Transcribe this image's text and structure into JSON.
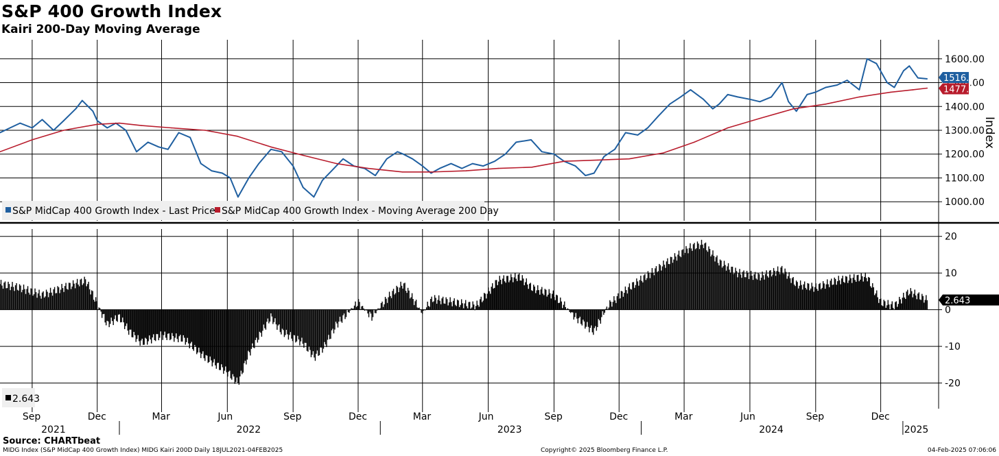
{
  "title": "S&P 400 Growth Index",
  "subtitle": "Kairi 200-Day Moving Average",
  "source": "Source: CHARTbeat",
  "footer": {
    "left": "MIDG Index (S&P MidCap 400 Growth Index) MIDG Kairi 200D  Daily 18JUL2021-04FEB2025",
    "center": "Copyright© 2025 Bloomberg Finance L.P.",
    "right": "04-Feb-2025 07:06:06"
  },
  "colors": {
    "price": "#1f5fa0",
    "ma": "#b81c2c",
    "kairi": "#000000",
    "grid": "#000000"
  },
  "chart_data": [
    {
      "type": "line",
      "ylabel": "Index",
      "ylim": [
        920,
        1680
      ],
      "yticks": [
        "1600.00",
        "1500.00",
        "1400.00",
        "1300.00",
        "1200.00",
        "1100.00",
        "1000.00"
      ],
      "grid": true,
      "legend_position": "bottom-left",
      "last_values": {
        "price": "1516.05",
        "ma": "1477.01"
      },
      "series": [
        {
          "name": "S&P MidCap 400 Growth Index - Last Price",
          "x": [
            "2021-07-18",
            "2021-08-01",
            "2021-08-15",
            "2021-09-01",
            "2021-09-15",
            "2021-10-01",
            "2021-10-15",
            "2021-11-01",
            "2021-11-10",
            "2021-11-25",
            "2021-12-01",
            "2021-12-15",
            "2021-12-27",
            "2022-01-10",
            "2022-01-25",
            "2022-02-10",
            "2022-02-25",
            "2022-03-10",
            "2022-03-25",
            "2022-04-10",
            "2022-04-25",
            "2022-05-10",
            "2022-05-25",
            "2022-06-05",
            "2022-06-16",
            "2022-07-01",
            "2022-07-15",
            "2022-08-01",
            "2022-08-16",
            "2022-09-01",
            "2022-09-15",
            "2022-09-30",
            "2022-10-12",
            "2022-10-25",
            "2022-11-10",
            "2022-11-25",
            "2022-12-10",
            "2022-12-25",
            "2023-01-10",
            "2023-01-25",
            "2023-02-02",
            "2023-02-15",
            "2023-03-01",
            "2023-03-13",
            "2023-03-25",
            "2023-04-10",
            "2023-04-25",
            "2023-05-10",
            "2023-05-25",
            "2023-06-10",
            "2023-06-25",
            "2023-07-10",
            "2023-07-31",
            "2023-08-15",
            "2023-09-01",
            "2023-09-15",
            "2023-10-01",
            "2023-10-15",
            "2023-10-27",
            "2023-11-10",
            "2023-11-25",
            "2023-12-10",
            "2023-12-27",
            "2024-01-10",
            "2024-01-25",
            "2024-02-10",
            "2024-02-25",
            "2024-03-10",
            "2024-03-28",
            "2024-04-10",
            "2024-04-19",
            "2024-05-01",
            "2024-05-15",
            "2024-06-01",
            "2024-06-15",
            "2024-07-01",
            "2024-07-16",
            "2024-07-25",
            "2024-08-05",
            "2024-08-20",
            "2024-09-01",
            "2024-09-15",
            "2024-10-01",
            "2024-10-15",
            "2024-11-01",
            "2024-11-12",
            "2024-11-25",
            "2024-12-10",
            "2024-12-20",
            "2025-01-02",
            "2025-01-10",
            "2025-01-22",
            "2025-02-04"
          ],
          "values": [
            1290,
            1310,
            1330,
            1310,
            1345,
            1300,
            1340,
            1390,
            1425,
            1380,
            1340,
            1310,
            1330,
            1300,
            1210,
            1250,
            1230,
            1220,
            1290,
            1270,
            1160,
            1130,
            1120,
            1100,
            1020,
            1100,
            1160,
            1220,
            1210,
            1150,
            1060,
            1020,
            1090,
            1130,
            1180,
            1150,
            1140,
            1110,
            1180,
            1210,
            1200,
            1180,
            1150,
            1120,
            1140,
            1160,
            1140,
            1160,
            1150,
            1170,
            1200,
            1250,
            1260,
            1210,
            1200,
            1170,
            1150,
            1110,
            1120,
            1190,
            1220,
            1290,
            1280,
            1310,
            1360,
            1410,
            1440,
            1470,
            1430,
            1390,
            1410,
            1450,
            1440,
            1430,
            1420,
            1440,
            1500,
            1420,
            1380,
            1450,
            1460,
            1480,
            1490,
            1510,
            1470,
            1600,
            1580,
            1500,
            1480,
            1550,
            1570,
            1520,
            1516.05
          ]
        },
        {
          "name": "S&P MidCap 400 Growth Index - Moving Average 200 Day",
          "x": [
            "2021-07-18",
            "2021-09-01",
            "2021-10-15",
            "2021-12-01",
            "2022-01-01",
            "2022-02-01",
            "2022-03-15",
            "2022-05-01",
            "2022-06-15",
            "2022-08-01",
            "2022-09-15",
            "2022-11-01",
            "2022-12-15",
            "2023-02-01",
            "2023-03-15",
            "2023-05-01",
            "2023-06-15",
            "2023-08-01",
            "2023-09-15",
            "2023-11-01",
            "2023-12-15",
            "2024-02-01",
            "2024-03-15",
            "2024-05-01",
            "2024-06-15",
            "2024-08-01",
            "2024-09-15",
            "2024-11-01",
            "2024-12-15",
            "2025-01-15",
            "2025-02-04"
          ],
          "values": [
            1210,
            1260,
            1300,
            1325,
            1330,
            1320,
            1310,
            1300,
            1275,
            1230,
            1195,
            1160,
            1140,
            1125,
            1125,
            1130,
            1140,
            1145,
            1170,
            1175,
            1180,
            1205,
            1250,
            1310,
            1350,
            1390,
            1410,
            1440,
            1460,
            1470,
            1477.01
          ]
        }
      ]
    },
    {
      "type": "bar",
      "ylim": [
        -27,
        22
      ],
      "yticks": [
        "20",
        "10",
        "0",
        "-10",
        "-20"
      ],
      "grid": true,
      "legend_position": "bottom-left",
      "last_value_label": "2.643",
      "series": [
        {
          "name": "2.643",
          "x": [
            "2021-07-18",
            "2021-08-15",
            "2021-09-15",
            "2021-10-15",
            "2021-11-15",
            "2021-12-15",
            "2022-01-01",
            "2022-01-15",
            "2022-02-01",
            "2022-03-01",
            "2022-04-01",
            "2022-05-01",
            "2022-06-01",
            "2022-06-16",
            "2022-07-01",
            "2022-08-01",
            "2022-08-16",
            "2022-09-15",
            "2022-10-01",
            "2022-10-15",
            "2022-11-01",
            "2022-12-01",
            "2022-12-20",
            "2023-01-15",
            "2023-02-02",
            "2023-03-01",
            "2023-03-15",
            "2023-04-15",
            "2023-05-15",
            "2023-06-15",
            "2023-07-15",
            "2023-08-01",
            "2023-09-01",
            "2023-10-01",
            "2023-10-27",
            "2023-11-15",
            "2023-12-15",
            "2024-01-15",
            "2024-02-15",
            "2024-03-10",
            "2024-03-28",
            "2024-04-19",
            "2024-05-15",
            "2024-06-15",
            "2024-07-16",
            "2024-08-05",
            "2024-09-01",
            "2024-10-01",
            "2024-11-12",
            "2024-12-01",
            "2024-12-20",
            "2025-01-10",
            "2025-02-04"
          ],
          "values": [
            7,
            6,
            4,
            6,
            8,
            -4,
            -2,
            -6,
            -9,
            -7,
            -8,
            -13,
            -17,
            -20,
            -12,
            -2,
            -6,
            -9,
            -13,
            -10,
            -4,
            2,
            -2,
            4,
            7,
            -1,
            3,
            2,
            1,
            8,
            9,
            6,
            4,
            -2,
            -6,
            1,
            6,
            10,
            14,
            17,
            18,
            13,
            10,
            9,
            11,
            7,
            6,
            8,
            9,
            2,
            1,
            5,
            2.643
          ]
        }
      ]
    }
  ],
  "x_axis": {
    "month_labels": [
      {
        "label": "Sep",
        "date": "2021-09-01"
      },
      {
        "label": "Dec",
        "date": "2021-12-01"
      },
      {
        "label": "Mar",
        "date": "2022-03-01"
      },
      {
        "label": "Jun",
        "date": "2022-06-01"
      },
      {
        "label": "Sep",
        "date": "2022-09-01"
      },
      {
        "label": "Dec",
        "date": "2022-12-01"
      },
      {
        "label": "Mar",
        "date": "2023-03-01"
      },
      {
        "label": "Jun",
        "date": "2023-06-01"
      },
      {
        "label": "Sep",
        "date": "2023-09-01"
      },
      {
        "label": "Dec",
        "date": "2023-12-01"
      },
      {
        "label": "Mar",
        "date": "2024-03-01"
      },
      {
        "label": "Jun",
        "date": "2024-06-01"
      },
      {
        "label": "Sep",
        "date": "2024-09-01"
      },
      {
        "label": "Dec",
        "date": "2024-12-01"
      }
    ],
    "year_labels": [
      {
        "label": "2021",
        "date": "2021-10-01"
      },
      {
        "label": "2022",
        "date": "2022-07-01"
      },
      {
        "label": "2023",
        "date": "2023-07-01"
      },
      {
        "label": "2024",
        "date": "2024-07-01"
      },
      {
        "label": "2025",
        "date": "2025-01-20"
      }
    ],
    "range": [
      "2021-07-18",
      "2025-02-20"
    ]
  }
}
